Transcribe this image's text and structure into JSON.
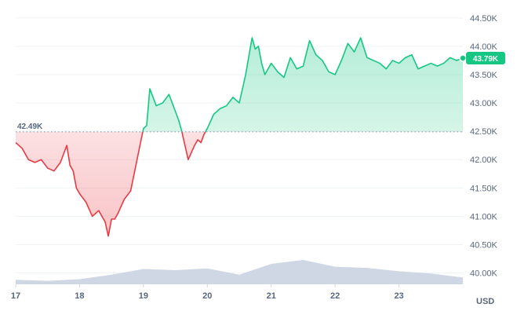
{
  "chart_data": {
    "type": "line",
    "x_labels": [
      "17",
      "18",
      "19",
      "20",
      "21",
      "22",
      "23"
    ],
    "y_ticks": [
      40000,
      40500,
      41000,
      41500,
      42000,
      42500,
      43000,
      43500,
      44000,
      44500
    ],
    "y_tick_labels": [
      "40.00K",
      "40.50K",
      "41.00K",
      "41.50K",
      "42.00K",
      "42.50K",
      "43.00K",
      "43.50K",
      "44.00K",
      "44.50K"
    ],
    "ylim": [
      39800,
      44650
    ],
    "xlim": [
      17.0,
      24.0
    ],
    "currency": "USD",
    "open_value": 42490,
    "open_label": "42.49K",
    "current_value": 43790,
    "current_label": "43.79K",
    "colors": {
      "up": "#16c784",
      "down": "#ea3943",
      "volume": "#cfd6e4",
      "grid": "#eff2f5"
    },
    "series": [
      {
        "x": [
          17.0,
          17.1,
          17.2,
          17.3,
          17.4,
          17.5,
          17.6,
          17.7,
          17.8,
          17.85,
          17.9,
          17.95,
          18.0,
          18.1,
          18.2,
          18.3,
          18.4,
          18.45,
          18.5,
          18.55,
          18.6,
          18.7,
          18.8,
          18.9,
          19.0,
          19.05,
          19.1,
          19.2,
          19.3,
          19.4,
          19.5,
          19.55,
          19.6,
          19.7,
          19.8,
          19.85,
          19.9,
          19.95,
          20.0,
          20.1,
          20.2,
          20.3,
          20.4,
          20.5,
          20.6,
          20.7,
          20.75,
          20.8,
          20.85,
          20.9,
          21.0,
          21.1,
          21.2,
          21.3,
          21.4,
          21.5,
          21.6,
          21.7,
          21.8,
          21.9,
          22.0,
          22.1,
          22.2,
          22.3,
          22.4,
          22.5,
          22.6,
          22.7,
          22.8,
          22.9,
          23.0,
          23.1,
          23.2,
          23.3,
          23.4,
          23.5,
          23.6,
          23.7,
          23.8,
          23.9,
          24.0
        ],
        "y": [
          42300,
          42200,
          42000,
          41950,
          42000,
          41850,
          41800,
          41950,
          42250,
          41900,
          41800,
          41500,
          41400,
          41250,
          41000,
          41100,
          40900,
          40650,
          40950,
          40950,
          41050,
          41300,
          41450,
          42000,
          42550,
          42600,
          43250,
          42950,
          43000,
          43150,
          42850,
          42700,
          42500,
          42000,
          42250,
          42350,
          42300,
          42450,
          42550,
          42800,
          42900,
          42950,
          43100,
          43000,
          43500,
          44150,
          43950,
          44000,
          43700,
          43500,
          43700,
          43550,
          43450,
          43800,
          43600,
          43650,
          44100,
          43850,
          43750,
          43550,
          43500,
          43750,
          44050,
          43900,
          44150,
          43800,
          43750,
          43700,
          43600,
          43750,
          43700,
          43800,
          43850,
          43600,
          43650,
          43700,
          43650,
          43700,
          43800,
          43750,
          43790
        ]
      },
      {
        "x": [
          17.0,
          17.5,
          18.0,
          18.5,
          19.0,
          19.5,
          20.0,
          20.5,
          21.0,
          21.5,
          22.0,
          22.5,
          23.0,
          23.5,
          24.0
        ],
        "y": [
          39880,
          39860,
          39890,
          39970,
          40070,
          40050,
          40080,
          39970,
          40160,
          40230,
          40110,
          40090,
          40030,
          39990,
          39920
        ]
      }
    ]
  }
}
